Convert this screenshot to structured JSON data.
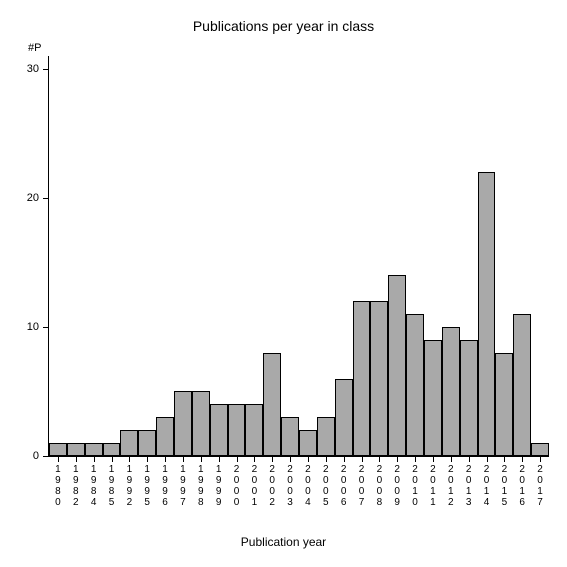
{
  "chart": {
    "type": "bar",
    "title": "Publications per year in class",
    "title_fontsize": 14,
    "xlabel": "Publication year",
    "ylabel": "#P",
    "label_fontsize": 12,
    "background_color": "#ffffff",
    "axis_color": "#000000",
    "bar_color": "#a9a9a9",
    "bar_border_color": "#000000",
    "ylim": [
      0,
      31
    ],
    "yticks": [
      0,
      10,
      20,
      30
    ],
    "categories": [
      "1980",
      "1982",
      "1984",
      "1985",
      "1992",
      "1995",
      "1996",
      "1997",
      "1998",
      "1999",
      "2000",
      "2001",
      "2002",
      "2003",
      "2004",
      "2005",
      "2006",
      "2007",
      "2008",
      "2009",
      "2010",
      "2011",
      "2012",
      "2013",
      "2014",
      "2015",
      "2016",
      "2017"
    ],
    "values": [
      1,
      1,
      1,
      1,
      2,
      2,
      3,
      5,
      5,
      4,
      4,
      4,
      8,
      3,
      2,
      3,
      6,
      12,
      12,
      14,
      11,
      9,
      10,
      9,
      22,
      8,
      11,
      1
    ],
    "tick_fontsize": 10
  }
}
